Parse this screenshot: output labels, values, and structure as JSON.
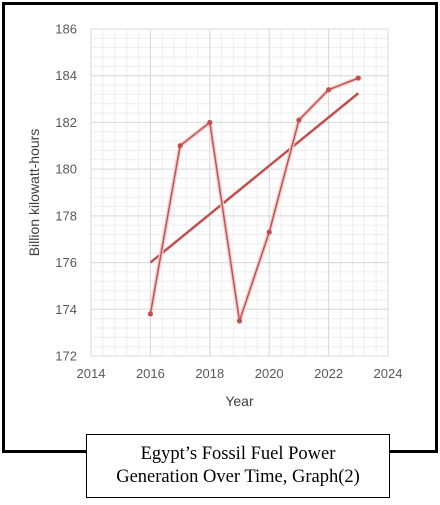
{
  "chart_data": {
    "type": "line",
    "title": "Egypt’s Fossil Fuel Power Generation Over Time, Graph(2)",
    "caption_lines": [
      "Egypt’s Fossil Fuel Power",
      "Generation Over Time, Graph(2)"
    ],
    "xlabel": "Year",
    "ylabel": "Billion kilowatt-hours",
    "xlim": [
      2014,
      2024
    ],
    "ylim": [
      172,
      186
    ],
    "x_ticks": [
      2014,
      2016,
      2018,
      2020,
      2022,
      2024
    ],
    "y_ticks": [
      172,
      174,
      176,
      178,
      180,
      182,
      184,
      186
    ],
    "grid": true,
    "series": [
      {
        "x": [
          2016,
          2017,
          2018,
          2019,
          2020,
          2021,
          2022,
          2023
        ],
        "values": [
          173.8,
          181.0,
          182.0,
          173.5,
          177.3,
          182.1,
          183.4,
          183.9
        ],
        "color": "#c0504d"
      }
    ],
    "trendline": {
      "type": "linear",
      "x": [
        2016,
        2023
      ],
      "values": [
        176.0,
        183.25
      ],
      "color": "#c0504d"
    }
  }
}
